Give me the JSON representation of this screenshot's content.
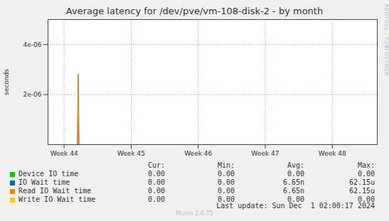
{
  "chart_data": {
    "type": "line",
    "title": "Average latency for /dev/pve/vm-108-disk-2 - by month",
    "y_label": "seconds",
    "x": [
      43.76,
      44.2,
      44.21,
      44.22,
      48.67
    ],
    "xlim": [
      43.76,
      48.67
    ],
    "xticks": [
      {
        "value": 44,
        "label": "Week 44"
      },
      {
        "value": 45,
        "label": "Week 45"
      },
      {
        "value": 46,
        "label": "Week 46"
      },
      {
        "value": 47,
        "label": "Week 47"
      },
      {
        "value": 48,
        "label": "Week 48"
      }
    ],
    "ylim": [
      0,
      5e-06
    ],
    "yticks": [
      {
        "value": 2e-06,
        "label": "2e-06"
      },
      {
        "value": 4e-06,
        "label": "4e-06"
      }
    ],
    "grid": true,
    "columns": [
      "Cur:",
      "Min:",
      "Avg:",
      "Max:"
    ],
    "series": [
      {
        "name": "Device IO time",
        "color": "#00cc00",
        "values": [
          0,
          0,
          0,
          0,
          0
        ],
        "cur": "0.00",
        "min": "0.00",
        "avg": "0.00",
        "max": "0.00"
      },
      {
        "name": "IO Wait time",
        "color": "#0066b3",
        "values": [
          0,
          0,
          2.8e-06,
          0,
          0
        ],
        "cur": "0.00",
        "min": "0.00",
        "avg": "6.65n",
        "max": "62.15u"
      },
      {
        "name": "Read IO Wait time",
        "color": "#ff8000",
        "values": [
          0,
          0,
          2.8e-06,
          0,
          0
        ],
        "cur": "0.00",
        "min": "0.00",
        "avg": "6.65n",
        "max": "62.15u"
      },
      {
        "name": "Write IO Wait time",
        "color": "#ffcc00",
        "values": [
          0,
          0,
          0,
          0,
          0
        ],
        "cur": "0.00",
        "min": "0.00",
        "avg": "0.00",
        "max": "0.00"
      }
    ],
    "last_update": "Last update: Sun Dec  1 02:00:17 2024",
    "credit": "Munin 2.0.75",
    "watermark": "RRDTOOL / TOBI OETIKER"
  }
}
